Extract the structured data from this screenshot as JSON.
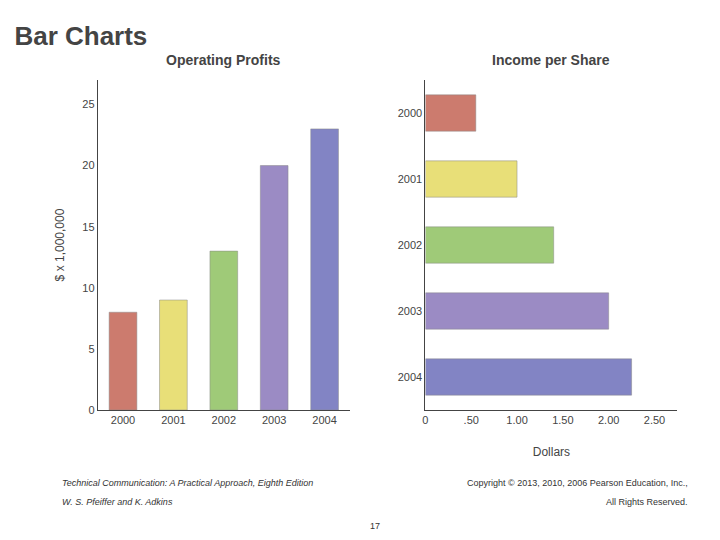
{
  "title": "Bar Charts",
  "annotations": [
    "Technical Communication: A Practical Approach, Eighth Edition",
    "W. S. Pfeiffer and K. Adkins",
    "17",
    "Copyright © 2013, 2010, 2006 Pearson Education, Inc.,",
    "All Rights Reserved."
  ],
  "chart_data": [
    {
      "type": "bar",
      "title": "Operating Profits",
      "categories": [
        "2000",
        "2001",
        "2002",
        "2003",
        "2004"
      ],
      "values": [
        8,
        9,
        13,
        20,
        23
      ],
      "colors": [
        "#cc7b6e",
        "#e8df78",
        "#9fca78",
        "#9b8bc4",
        "#8284c4"
      ],
      "ylabel": "$ x 1,000,000",
      "ylim": [
        0,
        27
      ],
      "yticks": [
        0,
        5,
        10,
        15,
        20,
        25
      ],
      "grid": false
    },
    {
      "type": "bar",
      "orientation": "horizontal",
      "title": "Income per Share",
      "categories": [
        "2000",
        "2001",
        "2002",
        "2003",
        "2004"
      ],
      "values": [
        0.55,
        1.0,
        1.4,
        2.0,
        2.25
      ],
      "colors": [
        "#cc7b6e",
        "#e8df78",
        "#9fca78",
        "#9b8bc4",
        "#8284c4"
      ],
      "xlabel": "Dollars",
      "xlim": [
        0,
        2.75
      ],
      "xticks": [
        0,
        {
          "value": 0.5,
          "label": ".50"
        },
        {
          "value": 1.0,
          "label": "1.00"
        },
        {
          "value": 1.5,
          "label": "1.50"
        },
        {
          "value": 2.0,
          "label": "2.00"
        },
        {
          "value": 2.5,
          "label": "2.50"
        }
      ],
      "grid": false
    }
  ]
}
